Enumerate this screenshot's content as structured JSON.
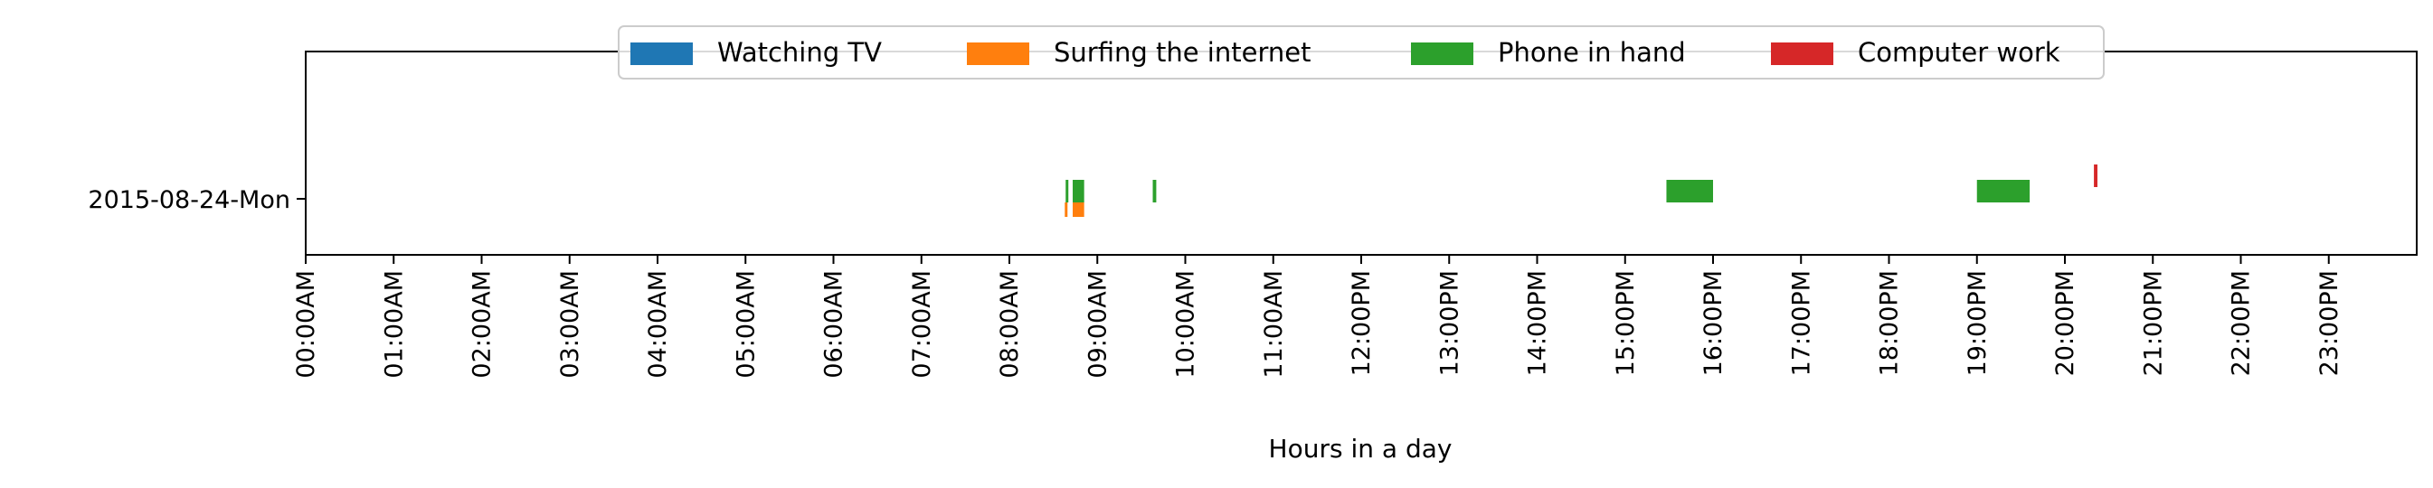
{
  "chart_data": {
    "type": "timeline",
    "title": "",
    "xlabel": "Hours in a day",
    "ylabel": "",
    "xlim": [
      0,
      24
    ],
    "x_ticks": [
      {
        "hour": 0,
        "label": "00:00AM"
      },
      {
        "hour": 1,
        "label": "01:00AM"
      },
      {
        "hour": 2,
        "label": "02:00AM"
      },
      {
        "hour": 3,
        "label": "03:00AM"
      },
      {
        "hour": 4,
        "label": "04:00AM"
      },
      {
        "hour": 5,
        "label": "05:00AM"
      },
      {
        "hour": 6,
        "label": "06:00AM"
      },
      {
        "hour": 7,
        "label": "07:00AM"
      },
      {
        "hour": 8,
        "label": "08:00AM"
      },
      {
        "hour": 9,
        "label": "09:00AM"
      },
      {
        "hour": 10,
        "label": "10:00AM"
      },
      {
        "hour": 11,
        "label": "11:00AM"
      },
      {
        "hour": 12,
        "label": "12:00PM"
      },
      {
        "hour": 13,
        "label": "13:00PM"
      },
      {
        "hour": 14,
        "label": "14:00PM"
      },
      {
        "hour": 15,
        "label": "15:00PM"
      },
      {
        "hour": 16,
        "label": "16:00PM"
      },
      {
        "hour": 17,
        "label": "17:00PM"
      },
      {
        "hour": 18,
        "label": "18:00PM"
      },
      {
        "hour": 19,
        "label": "19:00PM"
      },
      {
        "hour": 20,
        "label": "20:00PM"
      },
      {
        "hour": 21,
        "label": "21:00PM"
      },
      {
        "hour": 22,
        "label": "22:00PM"
      },
      {
        "hour": 23,
        "label": "23:00PM"
      }
    ],
    "categories": [
      "2015-08-24-Mon"
    ],
    "grid": false,
    "legend_position": "top-center",
    "series": [
      {
        "name": "Watching TV",
        "color": "#1f77b4",
        "intervals": []
      },
      {
        "name": "Surfing the internet",
        "color": "#ff7f0e",
        "intervals": [
          {
            "day": "2015-08-24-Mon",
            "start": 8.63,
            "end": 8.66
          },
          {
            "day": "2015-08-24-Mon",
            "start": 8.72,
            "end": 8.85
          }
        ]
      },
      {
        "name": "Phone in hand",
        "color": "#2ca02c",
        "intervals": [
          {
            "day": "2015-08-24-Mon",
            "start": 8.64,
            "end": 8.67
          },
          {
            "day": "2015-08-24-Mon",
            "start": 8.72,
            "end": 8.85
          },
          {
            "day": "2015-08-24-Mon",
            "start": 9.63,
            "end": 9.67
          },
          {
            "day": "2015-08-24-Mon",
            "start": 15.47,
            "end": 16.0
          },
          {
            "day": "2015-08-24-Mon",
            "start": 19.0,
            "end": 19.6
          }
        ]
      },
      {
        "name": "Computer work",
        "color": "#d62728",
        "intervals": [
          {
            "day": "2015-08-24-Mon",
            "start": 20.33,
            "end": 20.37
          }
        ]
      }
    ]
  }
}
